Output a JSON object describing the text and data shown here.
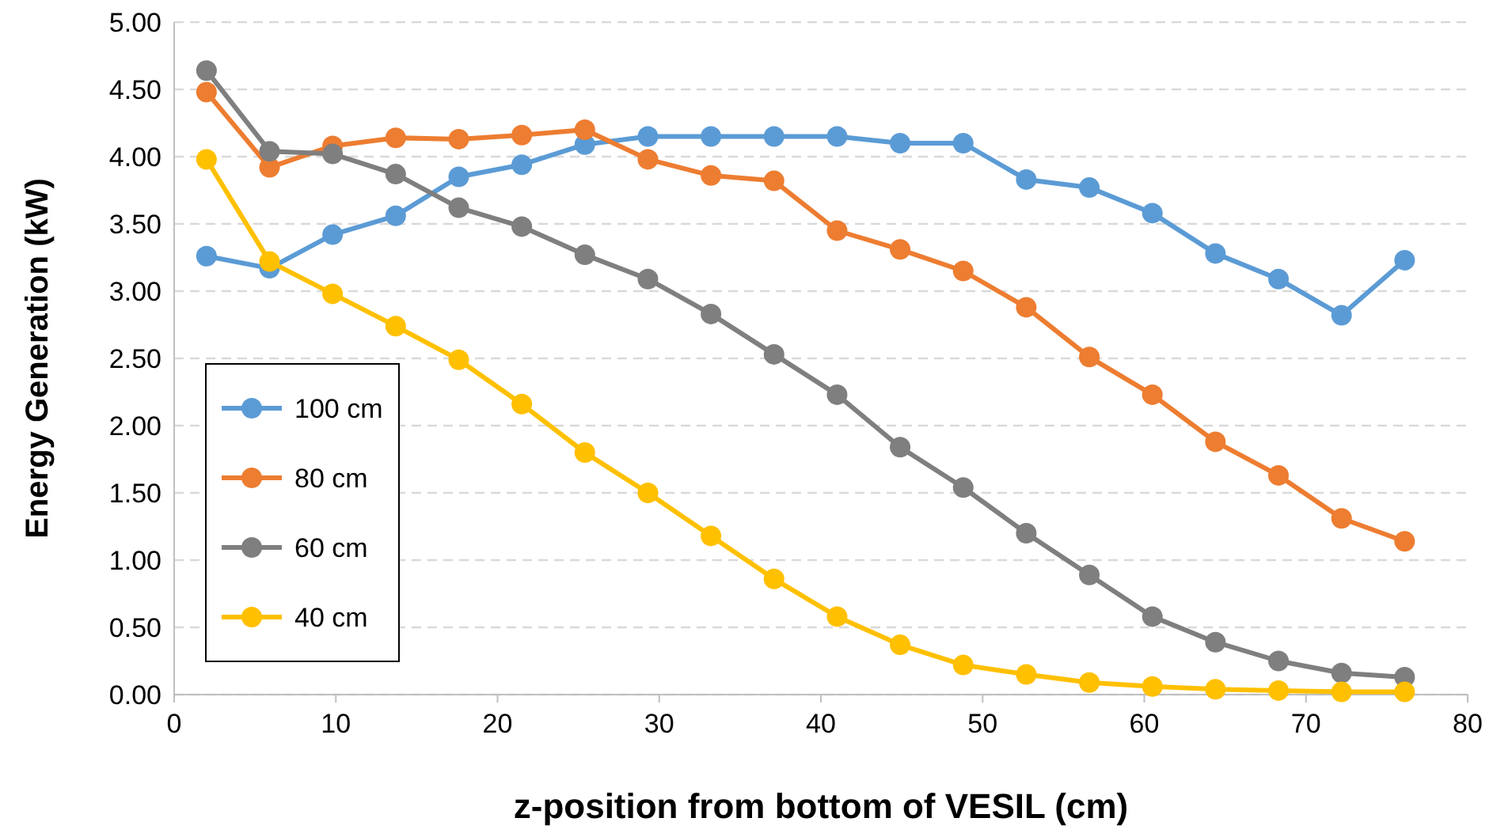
{
  "chart_data": {
    "type": "line",
    "xlabel": "z-position from bottom of VESIL (cm)",
    "ylabel": "Energy Generation (kW)",
    "x": [
      2,
      5.9,
      9.8,
      13.7,
      17.6,
      21.5,
      25.4,
      29.3,
      33.2,
      37.1,
      41,
      44.9,
      48.8,
      52.7,
      56.6,
      60.5,
      64.4,
      68.3,
      72.2,
      76.1
    ],
    "series": [
      {
        "name": "100 cm",
        "color": "#5b9bd5",
        "values": [
          3.26,
          3.17,
          3.42,
          3.56,
          3.85,
          3.94,
          4.09,
          4.15,
          4.15,
          4.15,
          4.15,
          4.1,
          4.1,
          3.83,
          3.77,
          3.58,
          3.28,
          3.09,
          2.82,
          3.23
        ]
      },
      {
        "name": "80 cm",
        "color": "#ed7d31",
        "values": [
          4.48,
          3.92,
          4.08,
          4.14,
          4.13,
          4.16,
          4.2,
          3.98,
          3.86,
          3.82,
          3.45,
          3.31,
          3.15,
          2.88,
          2.51,
          2.23,
          1.88,
          1.63,
          1.31,
          1.14
        ]
      },
      {
        "name": "60 cm",
        "color": "#7f7f7f",
        "values": [
          4.64,
          4.04,
          4.02,
          3.87,
          3.62,
          3.48,
          3.27,
          3.09,
          2.83,
          2.53,
          2.23,
          1.84,
          1.54,
          1.2,
          0.89,
          0.58,
          0.39,
          0.25,
          0.16,
          0.13
        ]
      },
      {
        "name": "40 cm",
        "color": "#ffc000",
        "values": [
          3.98,
          3.22,
          2.98,
          2.74,
          2.49,
          2.16,
          1.8,
          1.5,
          1.18,
          0.86,
          0.58,
          0.37,
          0.22,
          0.15,
          0.09,
          0.06,
          0.04,
          0.03,
          0.02,
          0.02
        ]
      }
    ],
    "xlim": [
      0,
      80
    ],
    "xticks": [
      0,
      10,
      20,
      30,
      40,
      50,
      60,
      70,
      80
    ],
    "ylim": [
      0,
      5
    ],
    "yticks": [
      {
        "value": 0,
        "label": "0.00"
      },
      {
        "value": 0.5,
        "label": "0.50"
      },
      {
        "value": 1,
        "label": "1.00"
      },
      {
        "value": 1.5,
        "label": "1.50"
      },
      {
        "value": 2,
        "label": "2.00"
      },
      {
        "value": 2.5,
        "label": "2.50"
      },
      {
        "value": 3,
        "label": "3.00"
      },
      {
        "value": 3.5,
        "label": "3.50"
      },
      {
        "value": 4,
        "label": "4.00"
      },
      {
        "value": 4.5,
        "label": "4.50"
      },
      {
        "value": 5,
        "label": "5.00"
      }
    ],
    "grid": "y",
    "legend": "left",
    "marker": "circle",
    "line_style": "solid"
  }
}
